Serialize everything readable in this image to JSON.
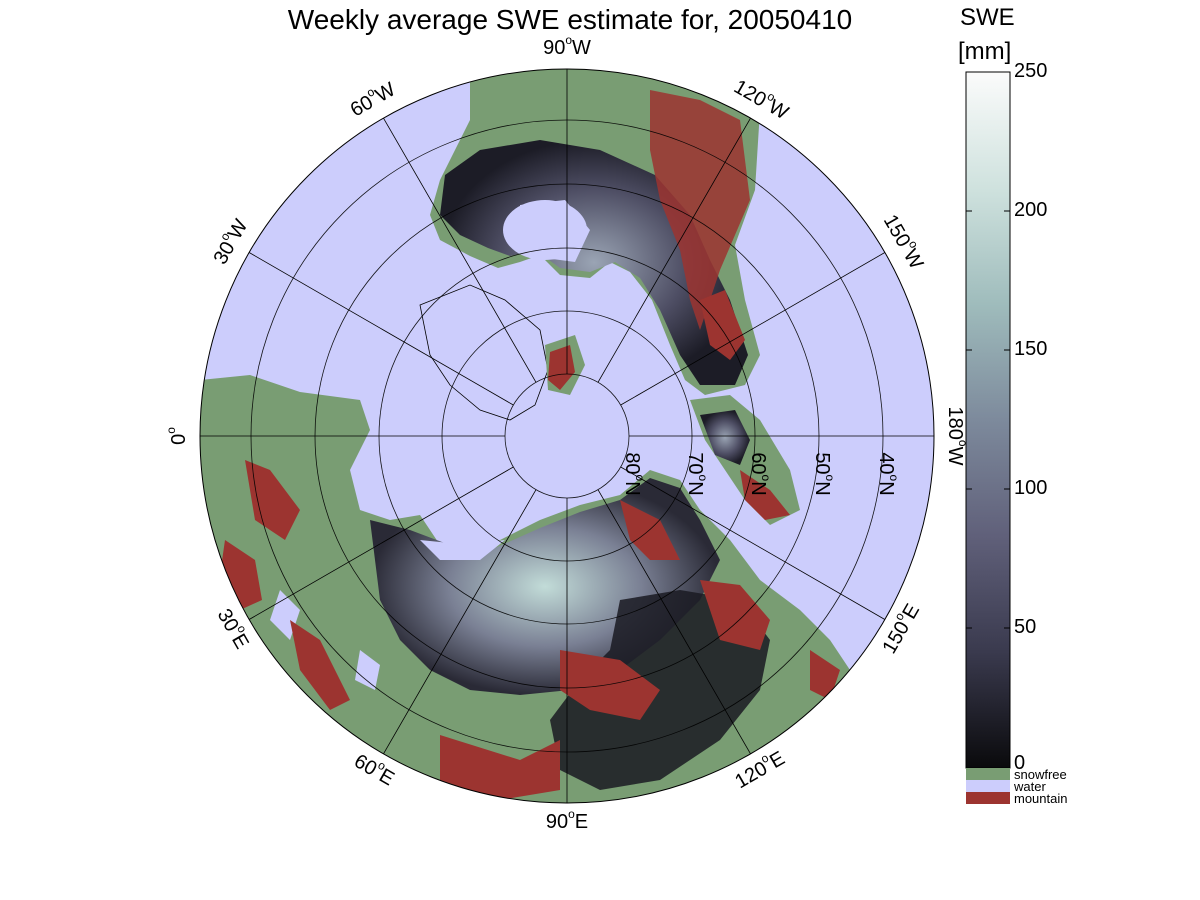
{
  "title": "Weekly average SWE estimate for, 20050410",
  "colorbar": {
    "title_line1": "SWE",
    "title_line2": "[mm]",
    "ticks": [
      "250",
      "200",
      "150",
      "100",
      "50",
      "0"
    ],
    "gradient_colors": [
      "#0a0a0c",
      "#3a3a4e",
      "#60607a",
      "#7d8a9c",
      "#9fbcbc",
      "#cfe2de",
      "#fbfbfb"
    ],
    "categories": [
      {
        "label": "snowfree",
        "color": "#799d73"
      },
      {
        "label": "water",
        "color": "#cccdfc"
      },
      {
        "label": "mountain",
        "color": "#9c3430"
      }
    ]
  },
  "map": {
    "projection": "north polar stereographic",
    "ocean_color": "#cccdfc",
    "land_color": "#799d73",
    "mountain_color": "#9c3430",
    "longitude_labels": [
      {
        "main": "90",
        "deg": "o",
        "dir": "W"
      },
      {
        "main": "120",
        "deg": "o",
        "dir": "W"
      },
      {
        "main": "150",
        "deg": "o",
        "dir": "W"
      },
      {
        "main": "180",
        "deg": "o",
        "dir": "W"
      },
      {
        "main": "150",
        "deg": "o",
        "dir": "E"
      },
      {
        "main": "120",
        "deg": "o",
        "dir": "E"
      },
      {
        "main": "90",
        "deg": "o",
        "dir": "E"
      },
      {
        "main": "60",
        "deg": "o",
        "dir": "E"
      },
      {
        "main": "30",
        "deg": "o",
        "dir": "E"
      },
      {
        "main": "0",
        "deg": "o",
        "dir": ""
      },
      {
        "main": "30",
        "deg": "o",
        "dir": "W"
      },
      {
        "main": "60",
        "deg": "o",
        "dir": "W"
      }
    ],
    "latitude_labels": [
      {
        "main": "80",
        "deg": "o",
        "dir": "N"
      },
      {
        "main": "70",
        "deg": "o",
        "dir": "N"
      },
      {
        "main": "60",
        "deg": "o",
        "dir": "N"
      },
      {
        "main": "50",
        "deg": "o",
        "dir": "N"
      },
      {
        "main": "40",
        "deg": "o",
        "dir": "N"
      }
    ]
  }
}
